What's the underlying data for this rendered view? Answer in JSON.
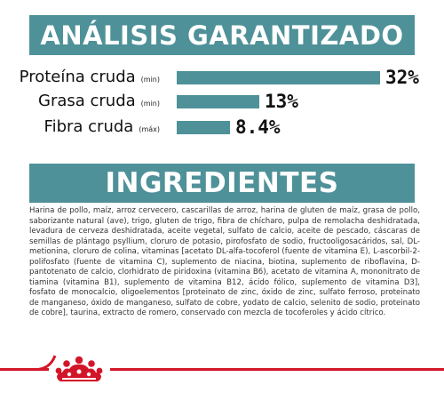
{
  "analysis": {
    "title": "ANÁLISIS GARANTIZADO",
    "nutrients": [
      {
        "name": "Proteína cruda",
        "qualifier": "(min)",
        "value_label": "32%",
        "value": 32
      },
      {
        "name": "Grasa cruda",
        "qualifier": "(min)",
        "value_label": "13%",
        "value": 13
      },
      {
        "name": "Fibra cruda",
        "qualifier": "(máx)",
        "value_label": "8.4%",
        "value": 8.4
      }
    ]
  },
  "ingredients": {
    "title": "INGREDIENTES",
    "text": "Harina de pollo, maíz, arroz cervecero, cascarillas de arroz, harina de gluten de maíz, grasa de pollo, saborizante natural (ave), trigo, gluten de trigo, fibra de chícharo, pulpa de remolacha deshidratada, levadura de cerveza deshidratada, aceite vegetal, sulfato de calcio, aceite de pescado, cáscaras de semillas de plántago psyllium, cloruro de potasio, pirofosfato de sodio, fructooligosacáridos, sal, DL-metionina, cloruro de colina, vitaminas [acetato DL-alfa-tocoferol (fuente de vitamina E), L-ascorbil-2-polifosfato (fuente de vitamina C), suplemento de niacina, biotina, suplemento de riboflavina, D-pantotenato de calcio, clorhidrato de piridoxina (vitamina B6), acetato de vitamina A, mononitrato de tiamina (vitamina B1), suplemento de vitamina B12, ácido fólico, suplemento de vitamina D3], fosfato de monocalcio, oligoelementos [proteinato de zinc, óxido de zinc, sulfato ferroso, proteinato de manganeso, óxido de manganeso, sulfato de cobre, yodato de calcio, selenito de sodio, proteinato de cobre], taurina, extracto de romero, conservado con mezcla de tocoferoles y ácido cítrico."
  },
  "colors": {
    "banner": "#4f9198",
    "bar": "#4f9198",
    "brand_red": "#d3152a"
  },
  "footer": {
    "logo_icon": "royal-canin-crown-icon"
  }
}
